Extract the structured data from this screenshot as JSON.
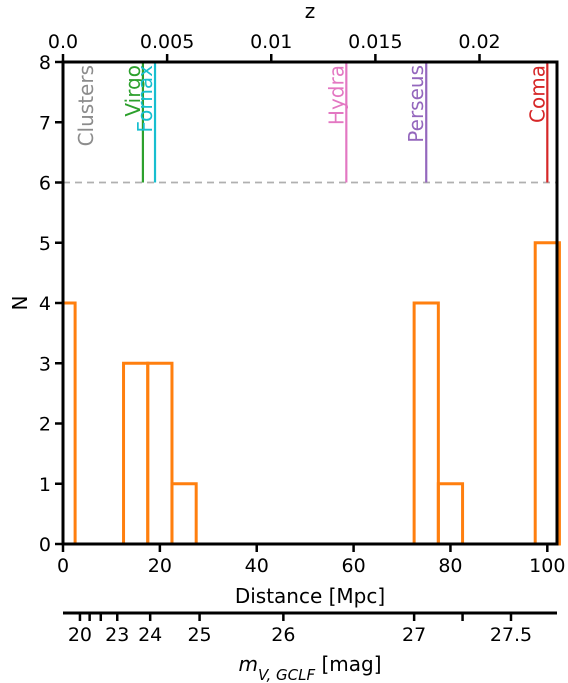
{
  "chart_data": {
    "type": "histogram",
    "xlabel": "Distance [Mpc]",
    "ylabel": "N",
    "xlim": [
      0,
      102
    ],
    "ylim": [
      0,
      8
    ],
    "x_ticks": [
      0,
      20,
      40,
      60,
      80,
      100
    ],
    "y_ticks": [
      0,
      1,
      2,
      3,
      4,
      5,
      6,
      7,
      8
    ],
    "histogram": {
      "color": "#ff7f0e",
      "bins": [
        {
          "from": 0,
          "to": 2.5,
          "count": 4
        },
        {
          "from": 12.5,
          "to": 17.5,
          "count": 3
        },
        {
          "from": 17.5,
          "to": 22.5,
          "count": 3
        },
        {
          "from": 22.5,
          "to": 27.5,
          "count": 1
        },
        {
          "from": 72.5,
          "to": 77.5,
          "count": 4
        },
        {
          "from": 77.5,
          "to": 82.5,
          "count": 1
        },
        {
          "from": 97.5,
          "to": 102.5,
          "count": 5
        }
      ]
    },
    "cluster_header": {
      "label": "Clusters",
      "color": "#8c8c8c"
    },
    "clusters": [
      {
        "name": "Virgo",
        "distance": 16.5,
        "color": "#2ca02c"
      },
      {
        "name": "Fornax",
        "distance": 19.0,
        "color": "#17becf"
      },
      {
        "name": "Hydra",
        "distance": 58.5,
        "color": "#e377c2"
      },
      {
        "name": "Perseus",
        "distance": 75.0,
        "color": "#9467bd"
      },
      {
        "name": "Coma",
        "distance": 100.0,
        "color": "#d62728"
      }
    ],
    "cluster_line_range": [
      6,
      8
    ],
    "separator": {
      "y": 6,
      "style": "dashed",
      "color": "#b0b0b0"
    },
    "top_axis": {
      "label": "z",
      "ticks": [
        {
          "label": "0.0",
          "at_distance": 0
        },
        {
          "label": "0.005",
          "at_distance": 21.5
        },
        {
          "label": "0.01",
          "at_distance": 43
        },
        {
          "label": "0.015",
          "at_distance": 64.5
        },
        {
          "label": "0.02",
          "at_distance": 86
        }
      ]
    },
    "bottom_axis": {
      "label": "m_V,GCLF [mag]",
      "label_main": "m",
      "label_sub": "V, GCLF",
      "label_unit": " [mag]",
      "ticks": [
        {
          "label": "20",
          "at_distance": 3.5
        },
        {
          "label": "",
          "at_distance": 5.5
        },
        {
          "label": "",
          "at_distance": 7.8
        },
        {
          "label": "23",
          "at_distance": 11.2
        },
        {
          "label": "24",
          "at_distance": 18.0
        },
        {
          "label": "25",
          "at_distance": 28.2
        },
        {
          "label": "26",
          "at_distance": 45.5
        },
        {
          "label": "27",
          "at_distance": 72.5
        },
        {
          "label": "",
          "at_distance": 82.5
        },
        {
          "label": "27.5",
          "at_distance": 92.5
        }
      ]
    }
  }
}
